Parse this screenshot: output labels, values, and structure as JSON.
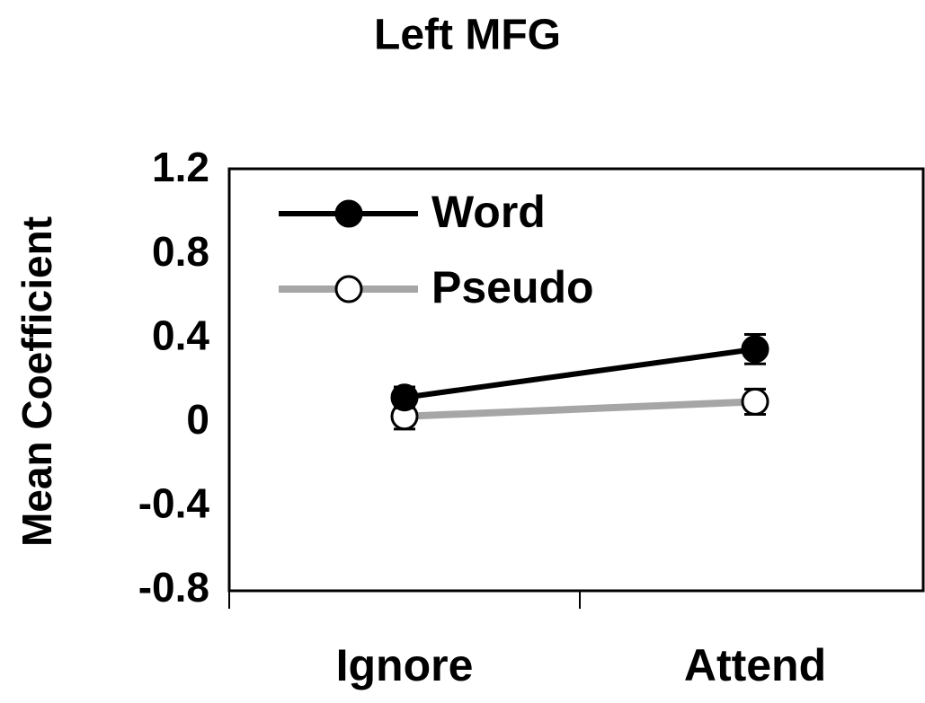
{
  "chart_data": {
    "type": "line",
    "title": "Left MFG",
    "y_label": "Mean Coefficient",
    "categories": [
      "Ignore",
      "Attend"
    ],
    "series": [
      {
        "name": "Word",
        "color": "#000000",
        "marker_fill": "#000000",
        "values": [
          0.12,
          0.35
        ],
        "errors": [
          0.05,
          0.07
        ]
      },
      {
        "name": "Pseudo",
        "color": "#a6a6a6",
        "marker_fill": "#ffffff",
        "values": [
          0.03,
          0.1
        ],
        "errors": [
          0.06,
          0.06
        ]
      }
    ],
    "ylim": [
      -0.8,
      1.2
    ],
    "yticks": [
      1.2,
      0.8,
      0.4,
      0,
      -0.4,
      -0.8
    ],
    "legend": "upper-left",
    "grid": false
  }
}
